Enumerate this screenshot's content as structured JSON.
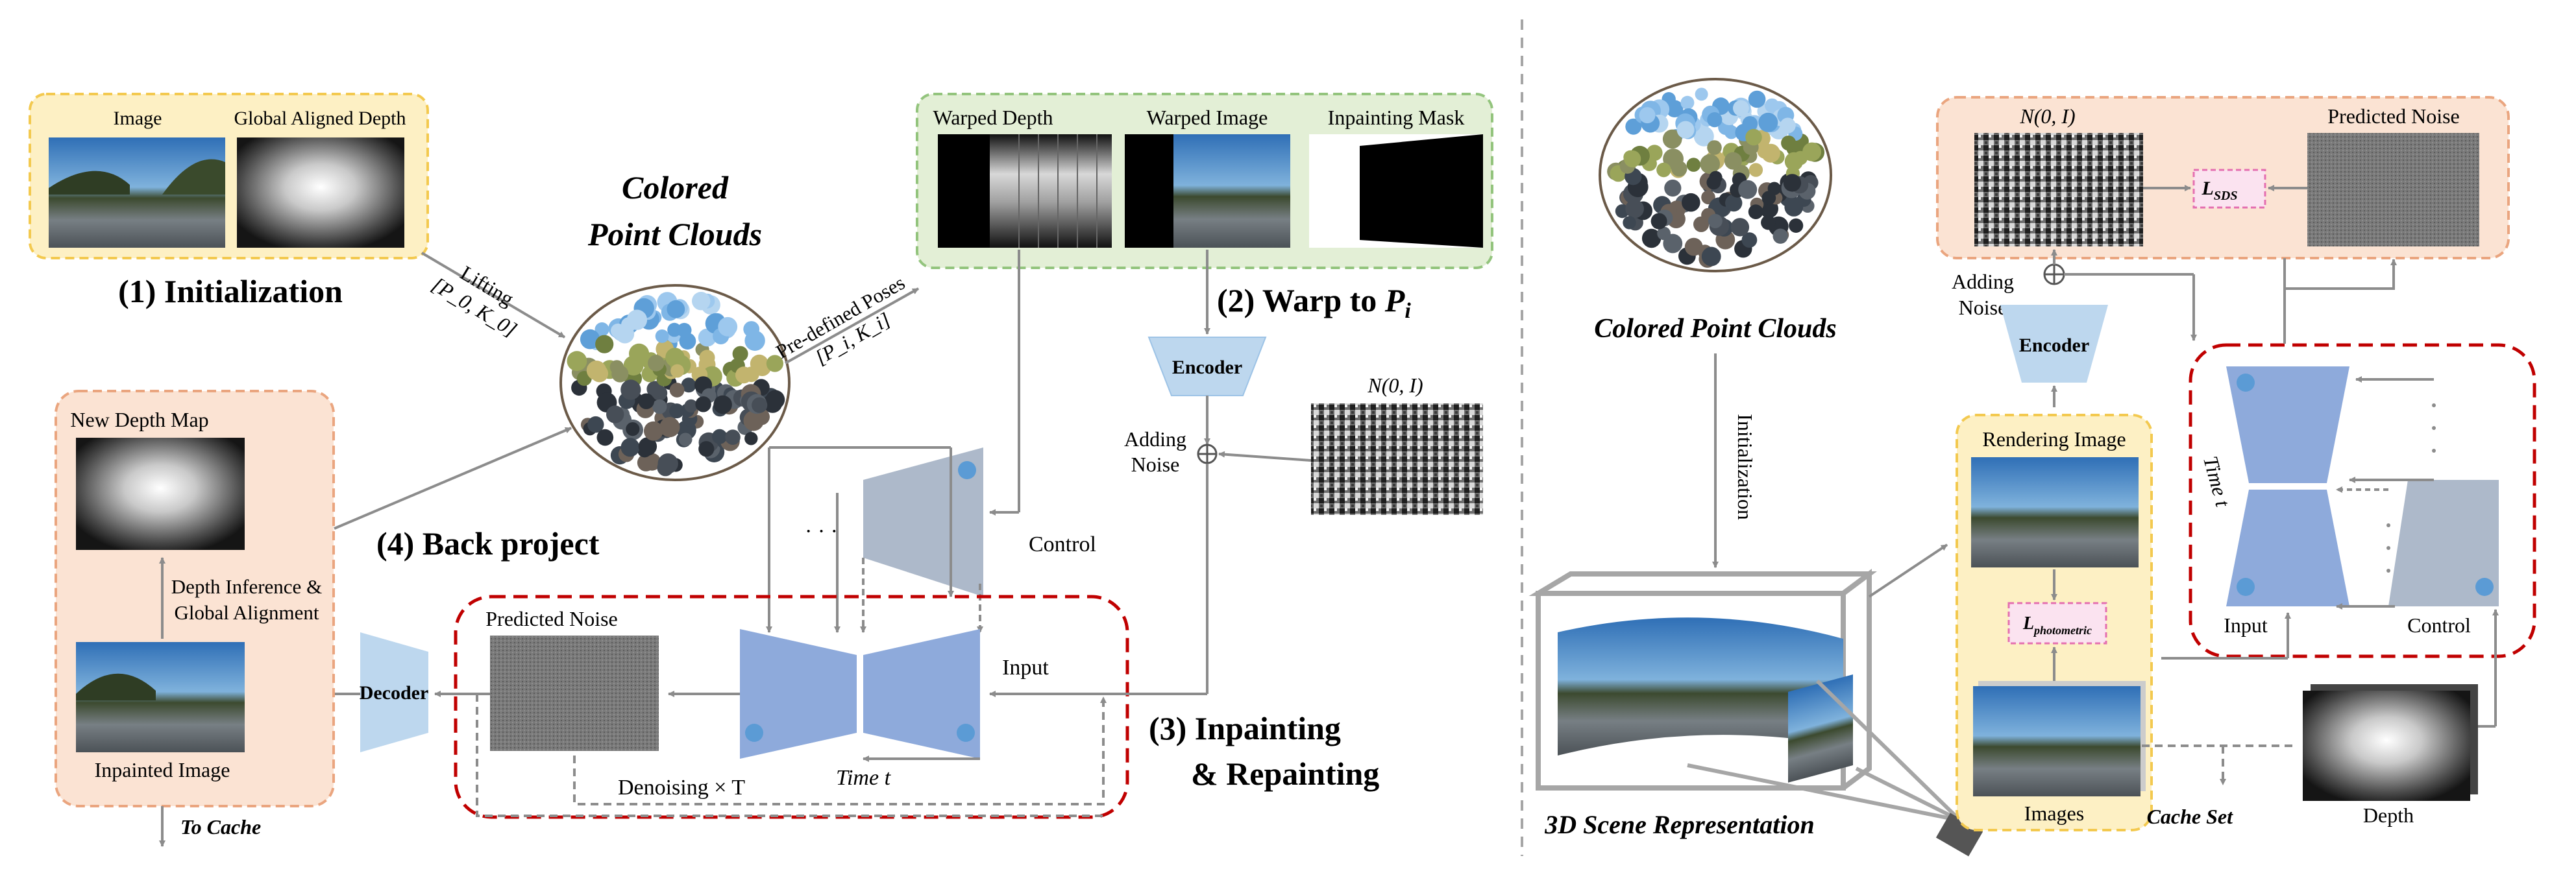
{
  "left_panel": {
    "init_box": {
      "image_label": "Image",
      "depth_label": "Global Aligned Depth"
    },
    "step1_title": "(1) Initialization",
    "lifting_label": "Lifting",
    "lifting_params": "[P_0, K_0]",
    "point_cloud_title_line1": "Colored",
    "point_cloud_title_line2": "Point Clouds",
    "poses_label": "Pre-defined Poses",
    "poses_params": "[P_i, K_i]",
    "warp_box": {
      "warped_depth": "Warped Depth",
      "warped_image": "Warped Image",
      "inpainting_mask": "Inpainting Mask"
    },
    "step2_title": "(2) Warp to ",
    "step2_var": "P",
    "step2_sub": "i",
    "encoder": "Encoder",
    "noise_dist": "N(0, I)",
    "adding_noise_line1": "Adding",
    "adding_noise_line2": "Noise",
    "control": "Control",
    "backproject_box": {
      "new_depth_map": "New Depth Map",
      "depth_inference_line1": "Depth Inference &",
      "depth_inference_line2": "Global Alignment",
      "inpainted_image": "Inpainted Image"
    },
    "step4_title": "(4) Back project",
    "to_cache": "To Cache",
    "decoder": "Decoder",
    "predicted_noise": "Predicted Noise",
    "input": "Input",
    "denoising": "Denoising × T",
    "time": "Time t",
    "step3_title_line1": "(3) Inpainting",
    "step3_title_line2": "& Repainting",
    "dots": "· · ·"
  },
  "right_panel": {
    "point_cloud_title": "Colored Point Clouds",
    "initialization": "Initialization",
    "scene_title": "3D Scene Representation",
    "noise_dist": "N(0, I)",
    "lsds": "L",
    "lsds_sub": "SDS",
    "predicted_noise": "Predicted Noise",
    "adding_noise_line1": "Adding",
    "adding_noise_line2": "Noise",
    "encoder": "Encoder",
    "rendering_image": "Rendering Image",
    "lphoto": "L",
    "lphoto_sub": "photometric",
    "images": "Images",
    "cache_set": "Cache Set",
    "depth": "Depth",
    "input": "Input",
    "control": "Control",
    "time": "Time t"
  },
  "colors": {
    "yellow_fill": "#fdf0c4",
    "yellow_stroke": "#f3c94f",
    "green_fill": "#e3efd6",
    "green_stroke": "#93c47d",
    "salmon_fill": "#fbe3d3",
    "salmon_stroke": "#eaa57f",
    "red_dash": "#c00000",
    "unet_blue": "#8eaadb",
    "control_gray": "#adb9ca",
    "encoder_blue": "#bdd7ee",
    "loss_pink": "#fbe3f0"
  }
}
